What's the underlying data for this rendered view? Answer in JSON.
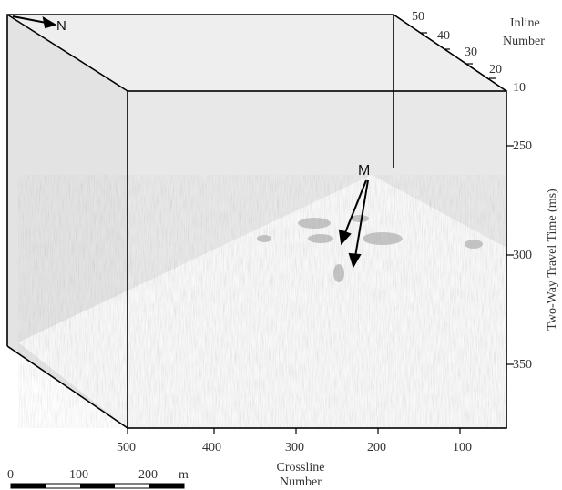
{
  "north_label": "N",
  "marker_label": "M",
  "inline_axis": {
    "title_line1": "Inline",
    "title_line2": "Number",
    "ticks": [
      "50",
      "40",
      "30",
      "20",
      "10"
    ]
  },
  "time_axis": {
    "title": "Two-Way Travel Time (ms)",
    "ticks": [
      "250",
      "300",
      "350"
    ]
  },
  "crossline_axis": {
    "title_line1": "Crossline",
    "title_line2": "Number",
    "ticks": [
      "500",
      "400",
      "300",
      "200",
      "100"
    ]
  },
  "scale_bar": {
    "labels": [
      "0",
      "100",
      "200"
    ],
    "unit": "m"
  },
  "colors": {
    "volume_face": "#e6e6e6",
    "seismic_section": "#f7f7f7",
    "lines": "#000000"
  }
}
